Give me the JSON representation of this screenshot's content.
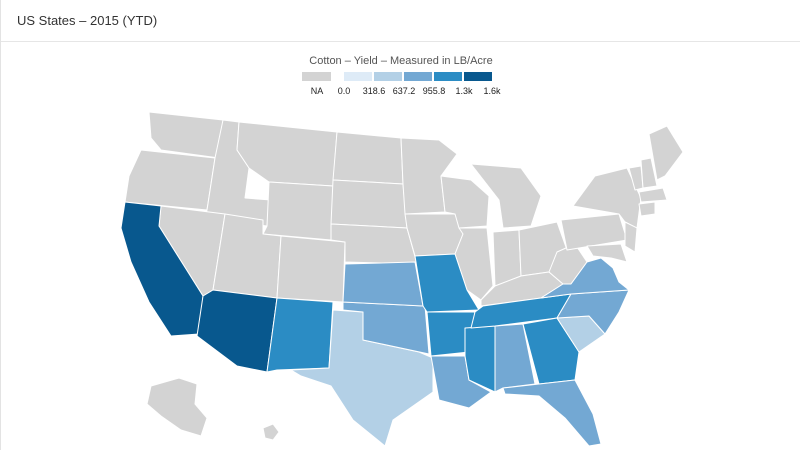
{
  "panel": {
    "title": "US States – 2015 (YTD)"
  },
  "legend": {
    "title": "Cotton – Yield – Measured in LB/Acre",
    "na_label": "NA",
    "breaks": [
      "0.0",
      "318.6",
      "637.2",
      "955.8",
      "1.3k",
      "1.6k"
    ],
    "colors": {
      "na": "#d3d3d3",
      "c1": "#deebf7",
      "c2": "#b3d0e6",
      "c3": "#73a8d3",
      "c4": "#2b8cc4",
      "c5": "#08588e"
    }
  },
  "map": {
    "na_states": [
      "Washington",
      "Oregon",
      "Idaho",
      "Montana",
      "Wyoming",
      "Nevada",
      "Utah",
      "Colorado",
      "North Dakota",
      "South Dakota",
      "Nebraska",
      "Minnesota",
      "Iowa",
      "Wisconsin",
      "Illinois",
      "Michigan",
      "Indiana",
      "Ohio",
      "Kentucky",
      "West Virginia",
      "Pennsylvania",
      "New York",
      "New Jersey",
      "Delaware",
      "Maryland",
      "Connecticut",
      "Rhode Island",
      "Massachusetts",
      "Vermont",
      "New Hampshire",
      "Maine",
      "Alaska",
      "Hawaii"
    ],
    "valued_states": [
      {
        "state": "California",
        "class": "c5"
      },
      {
        "state": "Arizona",
        "class": "c5"
      },
      {
        "state": "New Mexico",
        "class": "c4"
      },
      {
        "state": "Texas",
        "class": "c2"
      },
      {
        "state": "Oklahoma",
        "class": "c3"
      },
      {
        "state": "Kansas",
        "class": "c3"
      },
      {
        "state": "Missouri",
        "class": "c4"
      },
      {
        "state": "Arkansas",
        "class": "c4"
      },
      {
        "state": "Louisiana",
        "class": "c3"
      },
      {
        "state": "Mississippi",
        "class": "c4"
      },
      {
        "state": "Alabama",
        "class": "c3"
      },
      {
        "state": "Tennessee",
        "class": "c4"
      },
      {
        "state": "Georgia",
        "class": "c4"
      },
      {
        "state": "Florida",
        "class": "c3"
      },
      {
        "state": "South Carolina",
        "class": "c2"
      },
      {
        "state": "North Carolina",
        "class": "c3"
      },
      {
        "state": "Virginia",
        "class": "c3"
      }
    ]
  }
}
